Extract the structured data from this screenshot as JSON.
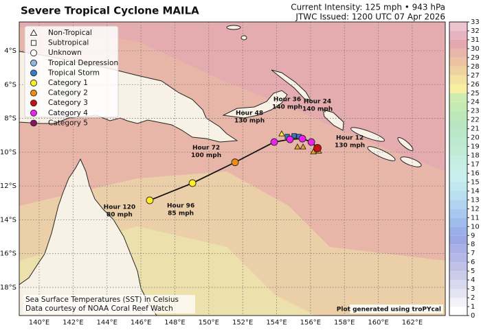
{
  "header": {
    "title": "Severe Tropical Cyclone MAILA",
    "intensity": "Current Intensity: 125 mph • 943 hPa",
    "issued": "JTWC Issued: 1200 UTC 07 Apr 2026"
  },
  "axes": {
    "lon_ticks": [
      {
        "value": 140,
        "label": "140°E"
      },
      {
        "value": 142,
        "label": "142°E"
      },
      {
        "value": 144,
        "label": "144°E"
      },
      {
        "value": 146,
        "label": "146°E"
      },
      {
        "value": 148,
        "label": "148°E"
      },
      {
        "value": 150,
        "label": "150°E"
      },
      {
        "value": 152,
        "label": "152°E"
      },
      {
        "value": 154,
        "label": "154°E"
      },
      {
        "value": 156,
        "label": "156°E"
      },
      {
        "value": 158,
        "label": "158°E"
      },
      {
        "value": 160,
        "label": "160°E"
      },
      {
        "value": 162,
        "label": "162°E"
      }
    ],
    "lat_ticks": [
      {
        "value": -4,
        "label": "4°S"
      },
      {
        "value": -6,
        "label": "6°S"
      },
      {
        "value": -8,
        "label": "8°S"
      },
      {
        "value": -10,
        "label": "10°S"
      },
      {
        "value": -12,
        "label": "12°S"
      },
      {
        "value": -14,
        "label": "14°S"
      },
      {
        "value": -16,
        "label": "16°S"
      },
      {
        "value": -18,
        "label": "18°S"
      }
    ]
  },
  "legend": [
    {
      "label": "Non-Tropical",
      "marker": "triangle",
      "color": "none"
    },
    {
      "label": "Subtropical",
      "marker": "square",
      "color": "none"
    },
    {
      "label": "Unknown",
      "marker": "circle",
      "color": "none"
    },
    {
      "label": "Tropical Depression",
      "marker": "circle",
      "color": "#8fb8e0"
    },
    {
      "label": "Tropical Storm",
      "marker": "circle",
      "color": "#3a78c8"
    },
    {
      "label": "Category 1",
      "marker": "circle",
      "color": "#ffee22"
    },
    {
      "label": "Category 2",
      "marker": "circle",
      "color": "#f08c10"
    },
    {
      "label": "Category 3",
      "marker": "circle",
      "color": "#cc1010"
    },
    {
      "label": "Category 4",
      "marker": "circle",
      "color": "#ee22ee"
    },
    {
      "label": "Category 5",
      "marker": "circle",
      "color": "#8a1060"
    }
  ],
  "past_track": [
    {
      "lon": 154.3,
      "lat": -8.91,
      "marker": "triangle",
      "color": "#ffee22"
    },
    {
      "lon": 154.63,
      "lat": -9.07,
      "marker": "square",
      "color": "#3a78c8"
    },
    {
      "lon": 155.03,
      "lat": -9.03,
      "marker": "square",
      "color": "#3a78c8"
    },
    {
      "lon": 155.32,
      "lat": -9.07,
      "marker": "square",
      "color": "#3a78c8"
    },
    {
      "lon": 155.23,
      "lat": -9.68,
      "marker": "triangle",
      "color": "#f0a020"
    },
    {
      "lon": 155.56,
      "lat": -9.68,
      "marker": "triangle",
      "color": "#f0a020"
    },
    {
      "lon": 156.17,
      "lat": -9.97,
      "marker": "triangle",
      "color": "#f0a020"
    },
    {
      "lon": 156.49,
      "lat": -9.93,
      "marker": "triangle",
      "color": "#f0a020"
    }
  ],
  "forecast": [
    {
      "lon": 156.41,
      "lat": -9.76,
      "color": "#cc1010"
    },
    {
      "hour": "Hour 12",
      "wind": "130 mph",
      "lon": 156.05,
      "lat": -9.4,
      "color": "#ee22ee"
    },
    {
      "hour": "Hour 24",
      "wind": "140 mph",
      "lon": 155.52,
      "lat": -9.2,
      "color": "#ee22ee"
    },
    {
      "hour": "Hour 36",
      "wind": "140 mph",
      "lon": 154.79,
      "lat": -9.24,
      "color": "#ee22ee"
    },
    {
      "hour": "Hour 48",
      "wind": "130 mph",
      "lon": 153.86,
      "lat": -9.4,
      "color": "#ee22ee"
    },
    {
      "hour": "Hour 72",
      "wind": "100 mph",
      "lon": 151.55,
      "lat": -10.6,
      "color": "#f08c10"
    },
    {
      "hour": "Hour 96",
      "wind": "85 mph",
      "lon": 149.04,
      "lat": -11.83,
      "color": "#ffee22"
    },
    {
      "hour": "Hour 120",
      "wind": "80 mph",
      "lon": 146.52,
      "lat": -12.85,
      "color": "#ffee22"
    }
  ],
  "colorbar": {
    "ticks": [
      0,
      1,
      2,
      3,
      4,
      5,
      6,
      7,
      8,
      9,
      10,
      11,
      12,
      13,
      14,
      15,
      16,
      17,
      18,
      19,
      20,
      21,
      22,
      23,
      24,
      25,
      26,
      27,
      28,
      29,
      30,
      31,
      32,
      33
    ]
  },
  "footer": {
    "sst": "Sea Surface Temperatures (SST) in Celsius",
    "credit": "Data courtesy of NOAA Coral Reef Watch",
    "generated": "Plot generated using troPYcal"
  }
}
